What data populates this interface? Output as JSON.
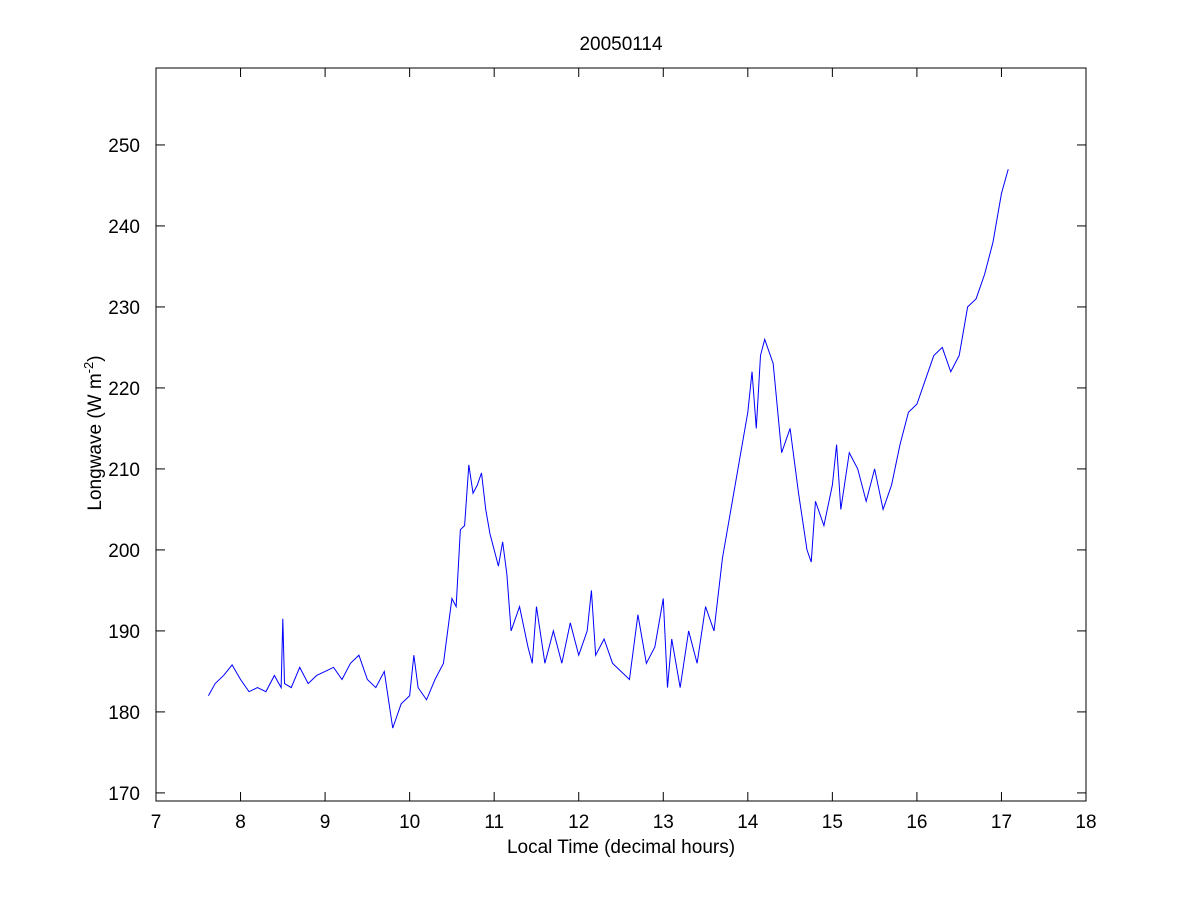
{
  "chart_data": {
    "type": "line",
    "title": "20050114",
    "xlabel": "Local Time (decimal hours)",
    "ylabel": [
      "Longwave (W m",
      "-2",
      ")"
    ],
    "x": [
      7.62,
      7.7,
      7.8,
      7.9,
      8.0,
      8.1,
      8.2,
      8.3,
      8.4,
      8.48,
      8.5,
      8.52,
      8.6,
      8.7,
      8.8,
      8.9,
      9.0,
      9.1,
      9.2,
      9.3,
      9.4,
      9.5,
      9.6,
      9.7,
      9.8,
      9.9,
      10.0,
      10.05,
      10.1,
      10.2,
      10.3,
      10.4,
      10.5,
      10.55,
      10.6,
      10.65,
      10.7,
      10.75,
      10.8,
      10.85,
      10.9,
      10.95,
      11.0,
      11.05,
      11.1,
      11.15,
      11.2,
      11.3,
      11.4,
      11.45,
      11.5,
      11.6,
      11.7,
      11.8,
      11.9,
      12.0,
      12.1,
      12.15,
      12.2,
      12.3,
      12.4,
      12.5,
      12.6,
      12.7,
      12.8,
      12.9,
      13.0,
      13.05,
      13.1,
      13.15,
      13.2,
      13.3,
      13.4,
      13.5,
      13.6,
      13.7,
      13.8,
      13.9,
      14.0,
      14.05,
      14.1,
      14.15,
      14.2,
      14.3,
      14.4,
      14.5,
      14.6,
      14.7,
      14.75,
      14.8,
      14.9,
      15.0,
      15.05,
      15.1,
      15.2,
      15.3,
      15.4,
      15.5,
      15.6,
      15.7,
      15.8,
      15.9,
      16.0,
      16.1,
      16.2,
      16.3,
      16.4,
      16.5,
      16.6,
      16.7,
      16.8,
      16.9,
      17.0,
      17.08
    ],
    "series": [
      {
        "name": "Longwave",
        "color": "#0000ff",
        "values": [
          182,
          183.5,
          184.5,
          185.8,
          184,
          182.5,
          183,
          182.5,
          184.5,
          183,
          191.5,
          183.5,
          183,
          185.5,
          183.5,
          184.5,
          185,
          185.5,
          184,
          186,
          187,
          184,
          183,
          185,
          178,
          181,
          182,
          187,
          183,
          181.5,
          184,
          186,
          194,
          193,
          202.5,
          203,
          210.5,
          207,
          208,
          209.5,
          205,
          202,
          200,
          198,
          201,
          197,
          190,
          193,
          188,
          186,
          193,
          186,
          190,
          186,
          191,
          187,
          190,
          195,
          187,
          189,
          186,
          185,
          184,
          192,
          186,
          188,
          194,
          183,
          189,
          186,
          183,
          190,
          186,
          193,
          190,
          199,
          205,
          211,
          217,
          222,
          215,
          224,
          226,
          223,
          212,
          215,
          207,
          200,
          198.5,
          206,
          203,
          208,
          213,
          205,
          212,
          210,
          206,
          210,
          205,
          208,
          213,
          217,
          218,
          221,
          224,
          225,
          222,
          224,
          230,
          231,
          234,
          238,
          244,
          247
        ]
      }
    ],
    "xlim": [
      7,
      18
    ],
    "xticks": [
      7,
      8,
      9,
      10,
      11,
      12,
      13,
      14,
      15,
      16,
      17,
      18
    ],
    "ylim": [
      169,
      259.5
    ],
    "yticks": [
      170,
      180,
      190,
      200,
      210,
      220,
      230,
      240,
      250
    ]
  }
}
